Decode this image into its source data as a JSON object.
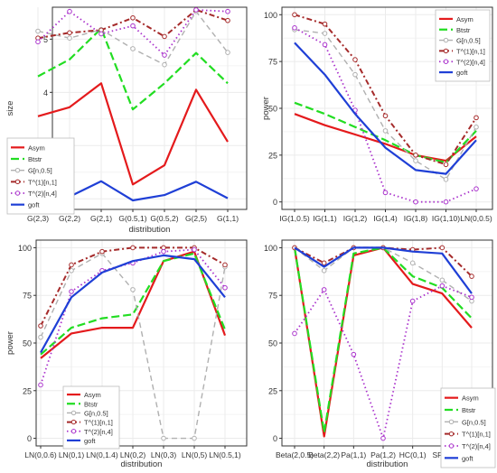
{
  "legend_common": {
    "colors": [
      "#e41a1c",
      "#22dd22",
      "#b0b0b0",
      "#a52a2a",
      "#aa33cc",
      "#1f3fd6"
    ],
    "styles": [
      "solid",
      "longdash",
      "dashed",
      "dashdot",
      "dotted",
      "solid"
    ],
    "markers": [
      "none",
      "none",
      "circle-open",
      "circle-open",
      "circle-open",
      "none"
    ],
    "grid": "on"
  },
  "chart_data": [
    {
      "type": "line",
      "xlabel": "distribution",
      "ylabel": "size",
      "categories": [
        "G(2,3)",
        "G(2,2)",
        "G(2,1)",
        "G(0.5,1)",
        "G(0.5,2)",
        "G(2,5)",
        "G(1,1)"
      ],
      "ylim": [
        1.8,
        5.6
      ],
      "yticks": [
        2,
        3,
        4,
        5
      ],
      "legend_position": "bottom-left",
      "series": [
        {
          "name": "Asym",
          "values": [
            3.55,
            3.72,
            4.17,
            2.27,
            2.63,
            4.05,
            3.07
          ]
        },
        {
          "name": "Btstr",
          "values": [
            4.3,
            4.62,
            5.2,
            3.68,
            4.17,
            4.74,
            4.17
          ]
        },
        {
          "name": "G[n,0.5]",
          "values": [
            5.15,
            5.02,
            5.18,
            4.82,
            4.52,
            5.52,
            4.75
          ]
        },
        {
          "name": "T^(1)[n,1]",
          "values": [
            5.02,
            5.12,
            5.17,
            5.4,
            5.05,
            5.55,
            5.35
          ]
        },
        {
          "name": "T^(2)[n,4]",
          "values": [
            4.95,
            5.52,
            5.1,
            5.25,
            4.7,
            5.55,
            5.52
          ]
        },
        {
          "name": "goft",
          "values": [
            2.05,
            2.04,
            2.33,
            1.97,
            2.07,
            2.32,
            2.01
          ]
        }
      ]
    },
    {
      "type": "line",
      "xlabel": "",
      "ylabel": "power",
      "categories": [
        "IG(1,0.5)",
        "IG(1,1)",
        "IG(1,2)",
        "IG(1,4)",
        "IG(1,8)",
        "IG(1,10)",
        "LN(0,0.5)"
      ],
      "ylim": [
        -4,
        104
      ],
      "yticks": [
        0,
        25,
        50,
        75,
        100
      ],
      "legend_position": "top-right",
      "series": [
        {
          "name": "Asym",
          "values": [
            47,
            41,
            36,
            31,
            25,
            22,
            35
          ]
        },
        {
          "name": "Btstr",
          "values": [
            53,
            47,
            40,
            33,
            25,
            21,
            38
          ]
        },
        {
          "name": "G[n,0.5]",
          "values": [
            92,
            90,
            68,
            38,
            22,
            12,
            40
          ]
        },
        {
          "name": "T^(1)[n,1]",
          "values": [
            100,
            95,
            76,
            46,
            25,
            20,
            45
          ]
        },
        {
          "name": "T^(2)[n,4]",
          "values": [
            93,
            84,
            49,
            5,
            0,
            0,
            7
          ]
        },
        {
          "name": "goft",
          "values": [
            85,
            68,
            47,
            29,
            17,
            15,
            33
          ]
        }
      ]
    },
    {
      "type": "line",
      "xlabel": "distribution",
      "ylabel": "power",
      "categories": [
        "LN(0,0.6)",
        "LN(0,1)",
        "LN(0,1.4)",
        "LN(0,2)",
        "LN(0,3)",
        "LN(0,5)",
        "LN(0.5,1)"
      ],
      "ylim": [
        -4,
        104
      ],
      "yticks": [
        0,
        25,
        50,
        75,
        100
      ],
      "legend_position": "bottom-left",
      "series": [
        {
          "name": "Asym",
          "values": [
            42,
            55,
            58,
            58,
            93,
            98,
            54
          ]
        },
        {
          "name": "Btstr",
          "values": [
            44,
            58,
            63,
            65,
            93,
            97,
            57
          ]
        },
        {
          "name": "G[n,0.5]",
          "values": [
            53,
            88,
            97,
            78,
            0,
            0,
            90
          ]
        },
        {
          "name": "T^(1)[n,1]",
          "values": [
            59,
            91,
            98,
            100,
            100,
            100,
            91
          ]
        },
        {
          "name": "T^(2)[n,4]",
          "values": [
            28,
            77,
            88,
            92,
            98,
            99,
            79
          ]
        },
        {
          "name": "goft",
          "values": [
            45,
            74,
            87,
            93,
            96,
            94,
            74
          ]
        }
      ]
    },
    {
      "type": "line",
      "xlabel": "distribution",
      "ylabel": "",
      "categories": [
        "Beta(2,0.5)",
        "Beta(2,2)",
        "Pa(1,1)",
        "Pa(1,2)",
        "HC(0,1)",
        "SP(1)",
        "SP(2)"
      ],
      "ylim": [
        -4,
        104
      ],
      "yticks": [
        0,
        25,
        50,
        75,
        100
      ],
      "legend_position": "bottom-right",
      "series": [
        {
          "name": "Asym",
          "values": [
            100,
            1,
            96,
            100,
            81,
            76,
            58
          ]
        },
        {
          "name": "Btstr",
          "values": [
            100,
            3,
            97,
            100,
            85,
            79,
            63
          ]
        },
        {
          "name": "G[n,0.5]",
          "values": [
            100,
            88,
            100,
            100,
            92,
            83,
            72
          ]
        },
        {
          "name": "T^(1)[n,1]",
          "values": [
            100,
            92,
            100,
            100,
            99,
            100,
            85
          ]
        },
        {
          "name": "T^(2)[n,4]",
          "values": [
            55,
            78,
            44,
            0,
            72,
            80,
            74
          ]
        },
        {
          "name": "goft",
          "values": [
            100,
            90,
            100,
            100,
            98,
            97,
            76
          ]
        }
      ]
    }
  ]
}
